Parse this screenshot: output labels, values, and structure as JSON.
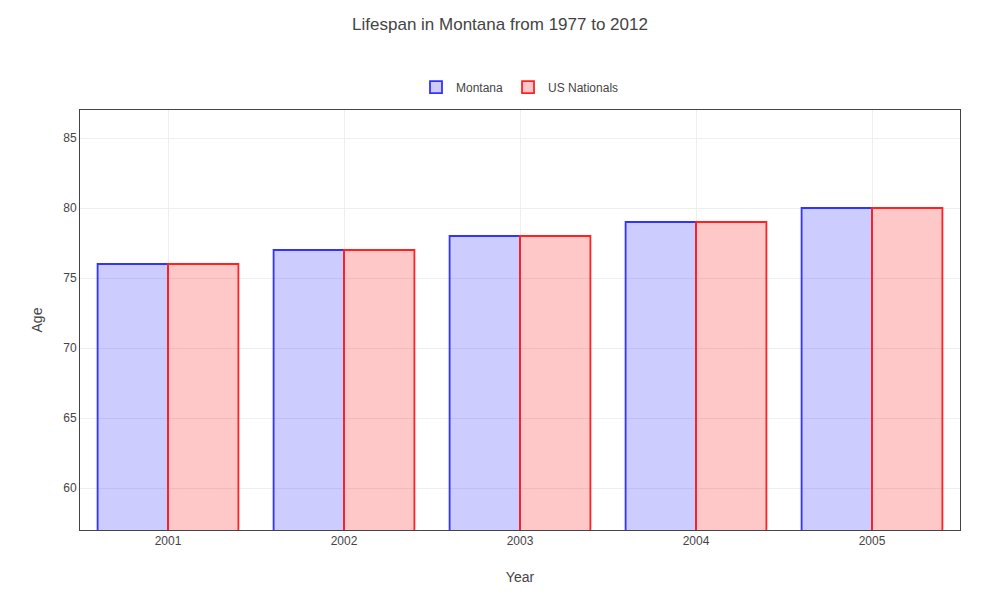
{
  "chart_data": {
    "type": "bar",
    "title": "Lifespan in Montana from 1977 to 2012",
    "x_label": "Year",
    "y_label": "Age",
    "categories": [
      "2001",
      "2002",
      "2003",
      "2004",
      "2005"
    ],
    "series": [
      {
        "name": "Montana",
        "color": "#3333ff",
        "values": [
          76,
          77,
          78,
          79,
          80
        ]
      },
      {
        "name": "US Nationals",
        "color": "#ff2222",
        "values": [
          76,
          77,
          78,
          79,
          80
        ]
      }
    ],
    "ylim": [
      57,
      87
    ],
    "yticks": [
      60,
      65,
      70,
      75,
      80,
      85
    ],
    "grid": true,
    "legend": "top"
  }
}
